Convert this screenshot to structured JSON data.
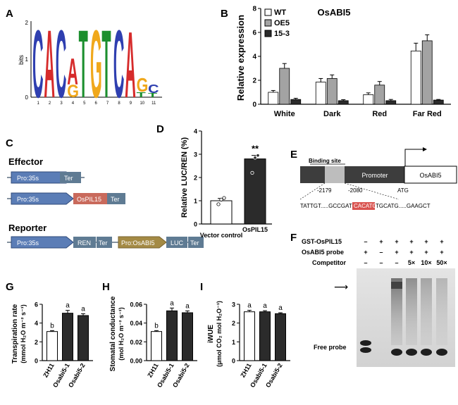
{
  "panels": {
    "A": {
      "label": "A",
      "ylabel": "bits",
      "y_ticks": [
        "0",
        "1",
        "2"
      ],
      "x_ticks": [
        "1",
        "2",
        "3",
        "4",
        "5",
        "6",
        "7",
        "8",
        "9",
        "10",
        "11"
      ],
      "logo": [
        {
          "pos": 1,
          "stack": [
            {
              "l": "C",
              "h": 1.95
            }
          ]
        },
        {
          "pos": 2,
          "stack": [
            {
              "l": "A",
              "h": 1.95
            }
          ]
        },
        {
          "pos": 3,
          "stack": [
            {
              "l": "C",
              "h": 1.95
            }
          ]
        },
        {
          "pos": 4,
          "stack": [
            {
              "l": "G",
              "h": 0.35
            },
            {
              "l": "A",
              "h": 0.75
            }
          ]
        },
        {
          "pos": 5,
          "stack": [
            {
              "l": "T",
              "h": 1.95
            }
          ]
        },
        {
          "pos": 6,
          "stack": [
            {
              "l": "G",
              "h": 1.95
            }
          ]
        },
        {
          "pos": 7,
          "stack": [
            {
              "l": "T",
              "h": 1.95
            }
          ]
        },
        {
          "pos": 8,
          "stack": [
            {
              "l": "C",
              "h": 1.95
            }
          ]
        },
        {
          "pos": 9,
          "stack": [
            {
              "l": "A",
              "h": 1.9
            }
          ]
        },
        {
          "pos": 10,
          "stack": [
            {
              "l": "T",
              "h": 0.15
            },
            {
              "l": "G",
              "h": 0.4
            }
          ]
        },
        {
          "pos": 11,
          "stack": [
            {
              "l": "T",
              "h": 0.12
            },
            {
              "l": "C",
              "h": 0.25
            }
          ]
        }
      ],
      "letter_colors": {
        "A": "#d62b2b",
        "C": "#2f3fb0",
        "G": "#f0a81c",
        "T": "#1c8f2e"
      }
    },
    "B": {
      "label": "B",
      "title": "OsABI5",
      "ylabel": "Relative expression",
      "ylim": [
        0,
        8
      ],
      "y_ticks": [
        "0",
        "2",
        "4",
        "6",
        "8"
      ],
      "legend": [
        "WT",
        "OE5",
        "15-3"
      ]
    },
    "C": {
      "label": "C",
      "effector_title": "Effector",
      "reporter_title": "Reporter",
      "pro35s": "Pro:35s",
      "ter": "Ter",
      "ospil15": "OsPIL15",
      "ren": "REN",
      "proosabi5": "Pro:OsABI5",
      "luc": "LUC"
    },
    "D": {
      "label": "D",
      "ylabel": "Relative LUC/REN (%)",
      "ylim": [
        0,
        4
      ],
      "y_ticks": [
        "0",
        "1",
        "2",
        "3",
        "4"
      ],
      "sig": "**"
    },
    "E": {
      "label": "E",
      "binding_site": "Binding site",
      "promoter": "Promoter",
      "gene": "OsABI5",
      "atg": "ATG",
      "pos_left": "-2179",
      "pos_right": "-2080",
      "seq_left": "TATTGT.....GCCGAT",
      "seq_motif": "CACATG",
      "seq_right": "TGCATG.....GAAGCT"
    },
    "F": {
      "label": "F",
      "row_labels": [
        "GST-OsPIL15",
        "OsABI5 probe",
        "Competitor"
      ],
      "row1": [
        "–",
        "+",
        "+",
        "+",
        "+",
        "+"
      ],
      "row2": [
        "+",
        "–",
        "+",
        "+",
        "+",
        "+"
      ],
      "row3": [
        "–",
        "–",
        "–",
        "5×",
        "10×",
        "50×"
      ],
      "free_probe": "Free probe"
    },
    "G": {
      "label": "G",
      "ylabel_line1": "Transpiration rate",
      "ylabel_line2": "(mmol H₂O m⁻² s⁻¹)",
      "ylim": [
        0,
        6
      ],
      "y_ticks": [
        "0",
        "2",
        "4",
        "6"
      ]
    },
    "H": {
      "label": "H",
      "ylabel_line1": "Stomatal conductance",
      "ylabel_line2": "(mol H₂O m⁻² s⁻¹)",
      "ylim": [
        0,
        0.06
      ],
      "y_ticks": [
        "0.00",
        "0.02",
        "0.04",
        "0.06"
      ]
    },
    "I": {
      "label": "I",
      "ylabel_line1": "iWUE",
      "ylabel_line2": "(μmol CO₂ mol H₂O⁻¹)",
      "ylim": [
        0,
        3
      ],
      "y_ticks": [
        "0",
        "1",
        "2",
        "3"
      ]
    }
  },
  "chart_data": [
    {
      "panel": "B",
      "type": "bar",
      "title": "OsABI5",
      "ylabel": "Relative expression",
      "ylim": [
        0,
        8
      ],
      "categories": [
        "White",
        "Dark",
        "Red",
        "Far Red"
      ],
      "series": [
        {
          "name": "WT",
          "color": "#ffffff",
          "values": [
            1.0,
            1.85,
            0.8,
            4.45
          ],
          "errors": [
            0.15,
            0.3,
            0.15,
            0.65
          ]
        },
        {
          "name": "OE5",
          "color": "#a3a3a3",
          "values": [
            3.0,
            2.15,
            1.6,
            5.3
          ],
          "errors": [
            0.4,
            0.3,
            0.3,
            0.5
          ]
        },
        {
          "name": "15-3",
          "color": "#2b2b2b",
          "values": [
            0.4,
            0.3,
            0.3,
            0.35
          ],
          "errors": [
            0.1,
            0.08,
            0.1,
            0.05
          ]
        }
      ],
      "legend_position": "top-left"
    },
    {
      "panel": "D",
      "type": "bar",
      "ylabel": "Relative LUC/REN (%)",
      "ylim": [
        0,
        4
      ],
      "categories": [
        "Vector control",
        "OsPIL15"
      ],
      "values": [
        1.0,
        2.8
      ],
      "errors": [
        0.1,
        0.15
      ],
      "colors": [
        "#ffffff",
        "#2b2b2b"
      ],
      "points": [
        [
          0.85,
          1.05,
          1.12
        ],
        [
          2.2,
          2.85,
          2.95
        ]
      ]
    },
    {
      "panel": "G",
      "type": "bar",
      "ylabel": "Transpiration rate (mmol H₂O m⁻² s⁻¹)",
      "ylim": [
        0,
        6
      ],
      "categories": [
        "ZH11",
        "Osabi5-1",
        "Osabi5-2"
      ],
      "values": [
        3.1,
        5.05,
        4.8
      ],
      "errors": [
        0.1,
        0.3,
        0.2
      ],
      "colors": [
        "#ffffff",
        "#2b2b2b",
        "#2b2b2b"
      ],
      "letters": [
        "b",
        "a",
        "a"
      ]
    },
    {
      "panel": "H",
      "type": "bar",
      "ylabel": "Stomatal conductance (mol H₂O m⁻² s⁻¹)",
      "ylim": [
        0,
        0.06
      ],
      "categories": [
        "ZH11",
        "Osabi5-1",
        "Osabi5-2"
      ],
      "values": [
        0.031,
        0.053,
        0.051
      ],
      "errors": [
        0.001,
        0.003,
        0.002
      ],
      "colors": [
        "#ffffff",
        "#2b2b2b",
        "#2b2b2b"
      ],
      "letters": [
        "b",
        "a",
        "a"
      ]
    },
    {
      "panel": "I",
      "type": "bar",
      "ylabel": "iWUE (μmol CO₂ mol H₂O⁻¹)",
      "ylim": [
        0,
        3
      ],
      "categories": [
        "ZH11",
        "Osabi5-1",
        "Osabi5-2"
      ],
      "values": [
        2.6,
        2.6,
        2.5
      ],
      "errors": [
        0.08,
        0.06,
        0.05
      ],
      "colors": [
        "#ffffff",
        "#2b2b2b",
        "#2b2b2b"
      ],
      "letters": [
        "a",
        "a",
        "a"
      ]
    }
  ]
}
